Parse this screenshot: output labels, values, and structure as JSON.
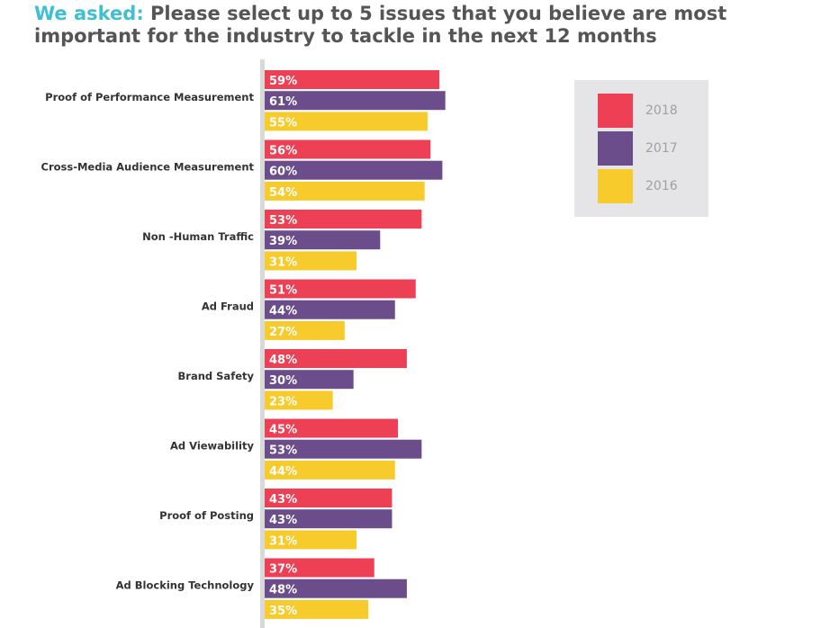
{
  "title": {
    "prefix": "We asked:",
    "text": "Please select up to 5 issues that you believe are most important for the industry to tackle in the next 12 months"
  },
  "colors": {
    "2018": "#ee4055",
    "2017": "#6b4d8c",
    "2016": "#f7cb2b",
    "title_accent": "#3fbfd2",
    "axis": "#d9d9d9",
    "legend_bg": "#e5e5e8",
    "legend_text": "#a0a0a0"
  },
  "chart_data": {
    "type": "bar",
    "orientation": "horizontal",
    "categories": [
      "Proof of Performance Measurement",
      "Cross-Media Audience Measurement",
      "Non -Human Traffic",
      "Ad Fraud",
      "Brand Safety",
      "Ad Viewability",
      "Proof of Posting",
      "Ad Blocking Technology"
    ],
    "series": [
      {
        "name": "2018",
        "values": [
          59,
          56,
          53,
          51,
          48,
          45,
          43,
          37
        ],
        "labels": [
          "59%",
          "56%",
          "53%",
          "51%",
          "48%",
          "45%",
          "43%",
          "37%"
        ]
      },
      {
        "name": "2017",
        "values": [
          61,
          60,
          39,
          44,
          30,
          53,
          43,
          48
        ],
        "labels": [
          "61%",
          "60%",
          "39%",
          "44%",
          "30%",
          "53%",
          "43%",
          "48%"
        ]
      },
      {
        "name": "2016",
        "values": [
          55,
          54,
          31,
          27,
          23,
          44,
          31,
          35
        ],
        "labels": [
          "55%",
          "54%",
          "31%",
          "27%",
          "23%",
          "44%",
          "31%",
          "35%"
        ]
      }
    ],
    "legend_position": "top-right",
    "grid": false
  }
}
